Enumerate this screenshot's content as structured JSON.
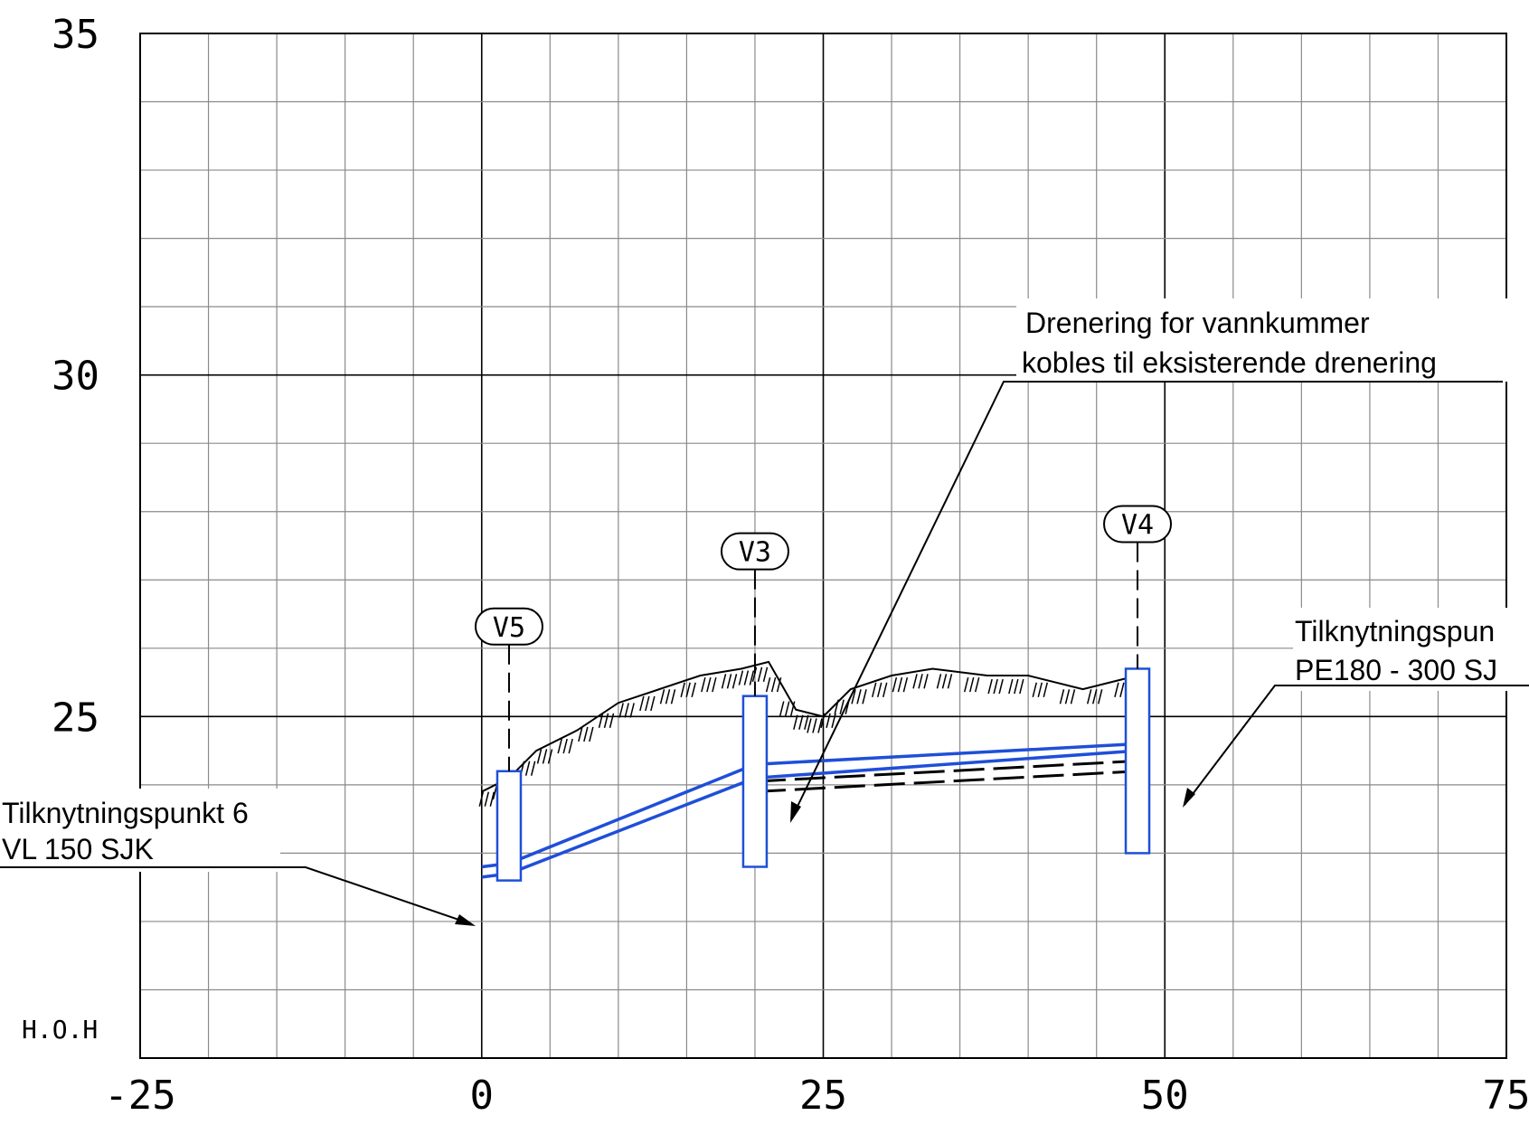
{
  "chart_data": {
    "type": "profile",
    "x_ticks": [
      "-25",
      "0",
      "25",
      "50",
      "75"
    ],
    "y_ticks": [
      "35",
      "30",
      "25"
    ],
    "xlim": [
      -25,
      75
    ],
    "ylim": [
      20,
      35
    ],
    "y_unit_label": "H.O.H",
    "grid": true,
    "manholes": [
      {
        "name": "V5",
        "x": 2,
        "top": 24.2,
        "bottom": 22.6
      },
      {
        "name": "V3",
        "x": 20,
        "top": 25.3,
        "bottom": 22.8
      },
      {
        "name": "V4",
        "x": 48,
        "top": 25.7,
        "bottom": 23.0
      }
    ],
    "terrain": [
      [
        0,
        23.9
      ],
      [
        2,
        24.1
      ],
      [
        4,
        24.5
      ],
      [
        7,
        24.8
      ],
      [
        10,
        25.2
      ],
      [
        13,
        25.4
      ],
      [
        16,
        25.6
      ],
      [
        19,
        25.7
      ],
      [
        21,
        25.8
      ],
      [
        23,
        25.1
      ],
      [
        25,
        25.0
      ],
      [
        27,
        25.4
      ],
      [
        30,
        25.6
      ],
      [
        33,
        25.7
      ],
      [
        37,
        25.6
      ],
      [
        40,
        25.6
      ],
      [
        44,
        25.4
      ],
      [
        48,
        25.6
      ]
    ],
    "pipes_blue": [
      {
        "points": [
          [
            0,
            22.8
          ],
          [
            2,
            22.85
          ],
          [
            20,
            24.3
          ],
          [
            48,
            24.6
          ]
        ]
      },
      {
        "points": [
          [
            0,
            22.65
          ],
          [
            2,
            22.7
          ],
          [
            20,
            24.1
          ],
          [
            48,
            24.5
          ]
        ]
      }
    ],
    "pipes_black_dashed": [
      {
        "points": [
          [
            20,
            24.05
          ],
          [
            48,
            24.35
          ]
        ]
      },
      {
        "points": [
          [
            20,
            23.9
          ],
          [
            48,
            24.2
          ]
        ]
      }
    ]
  },
  "annotations": {
    "left_note": {
      "line1": "Tilknytningspunkt 6",
      "line2": "VL 150 SJK"
    },
    "center_note": {
      "line1": "Drenering for vannkummer",
      "line2": "kobles til eksisterende drenering"
    },
    "right_note": {
      "line1": "Tilknytningspun",
      "line2": "PE180 - 300 SJ"
    }
  },
  "colors": {
    "pipe": "#1f4fd8",
    "grid": "#8a8a8a",
    "ink": "#000000"
  }
}
